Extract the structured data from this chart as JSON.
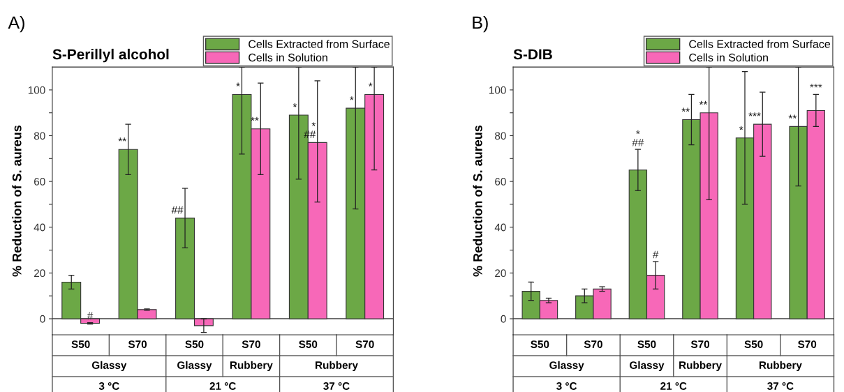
{
  "chart_data": [
    {
      "type": "bar",
      "title": "S-Perillyl alcohol",
      "ylabel": "% Reduction of S. aureus",
      "categories": [
        "S50",
        "S70",
        "S50",
        "S70",
        "S50",
        "S70"
      ],
      "series": [
        {
          "name": "Cells Extracted from Surface",
          "color": "#6ca846",
          "values": [
            16,
            74,
            44,
            98,
            89,
            92
          ],
          "errors": [
            [
              13,
              19
            ],
            [
              63,
              85
            ],
            [
              31,
              57
            ],
            [
              72,
              110
            ],
            [
              61,
              110
            ],
            [
              48,
              110
            ]
          ],
          "value_labels": [
            null,
            "**",
            "##",
            "*",
            "*",
            "*"
          ]
        },
        {
          "name": "Cells in Solution",
          "color": "#f768b8",
          "values": [
            -2,
            4,
            -3,
            83,
            77,
            98
          ],
          "errors": [
            [
              -2.3,
              -1.7
            ],
            [
              3.7,
              4.3
            ],
            [
              -6,
              0
            ],
            [
              63,
              103
            ],
            [
              51,
              104
            ],
            [
              65,
              110
            ]
          ],
          "value_labels": [
            "#",
            null,
            null,
            "**",
            "*\n##",
            "*"
          ]
        }
      ],
      "ylim": [
        -7,
        110
      ],
      "yticks": [
        0,
        {
          "value": 10,
          "label": null
        },
        20,
        {
          "value": 30,
          "label": null
        },
        40,
        {
          "value": 50,
          "label": null
        },
        60,
        {
          "value": 70,
          "label": null
        },
        80,
        {
          "value": 90,
          "label": null
        },
        100
      ],
      "legend": "top right",
      "grid": false,
      "ref_lines": [
        {
          "axis": "y",
          "value": 0,
          "color": "#333333"
        }
      ],
      "annotations": [
        "A)",
        "Glassy",
        "Glassy",
        "Rubbery",
        "Rubbery",
        "3 °C",
        "21 °C",
        "37 °C"
      ]
    },
    {
      "type": "bar",
      "title": "S-DIB",
      "ylabel": "% Reduction of S. aureus",
      "categories": [
        "S50",
        "S70",
        "S50",
        "S70",
        "S50",
        "S70"
      ],
      "series": [
        {
          "name": "Cells Extracted from Surface",
          "color": "#6ca846",
          "values": [
            12,
            10,
            65,
            87,
            79,
            84
          ],
          "errors": [
            [
              8,
              16
            ],
            [
              7,
              13
            ],
            [
              56,
              74
            ],
            [
              76,
              98
            ],
            [
              50,
              108
            ],
            [
              58,
              110
            ]
          ],
          "value_labels": [
            null,
            null,
            "*\n##",
            "**",
            "*",
            "**"
          ]
        },
        {
          "name": "Cells in Solution",
          "color": "#f768b8",
          "values": [
            8,
            13,
            19,
            90,
            85,
            91
          ],
          "errors": [
            [
              7,
              9
            ],
            [
              12,
              14
            ],
            [
              13,
              25
            ],
            [
              52,
              110
            ],
            [
              71,
              99
            ],
            [
              84,
              98
            ]
          ],
          "value_labels": [
            null,
            null,
            "#",
            "**",
            "***",
            "***"
          ]
        }
      ],
      "ylim": [
        -7,
        110
      ],
      "yticks": [
        0,
        {
          "value": 10,
          "label": null
        },
        20,
        {
          "value": 30,
          "label": null
        },
        40,
        {
          "value": 50,
          "label": null
        },
        60,
        {
          "value": 70,
          "label": null
        },
        80,
        {
          "value": 90,
          "label": null
        },
        100
      ],
      "legend": "top right",
      "grid": false,
      "ref_lines": [
        {
          "axis": "y",
          "value": 0,
          "color": "#333333"
        }
      ],
      "annotations": [
        "B)",
        "Glassy",
        "Glassy",
        "Rubbery",
        "Rubbery",
        "3 °C",
        "21 °C",
        "37 °C"
      ]
    }
  ]
}
